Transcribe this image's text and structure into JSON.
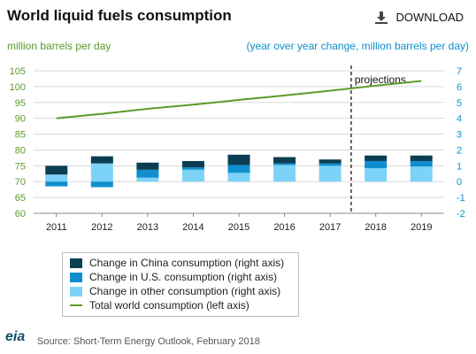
{
  "header": {
    "title": "World liquid fuels consumption",
    "download_label": "DOWNLOAD",
    "download_icon": "download-icon"
  },
  "colors": {
    "china": "#0b3e52",
    "us": "#0f8fcf",
    "other": "#7dd3f7",
    "total": "#5a9a2b",
    "left_axis": "#5a9a2b",
    "right_axis": "#0f8fcf",
    "projection_line": "#333333",
    "grid": "#d9d9d9"
  },
  "chart_data": {
    "type": "bar",
    "subtype": "stacked bar with line overlay",
    "title": "World liquid fuels consumption",
    "categories": [
      "2011",
      "2012",
      "2013",
      "2014",
      "2015",
      "2016",
      "2017",
      "2018",
      "2019"
    ],
    "left_axis": {
      "label": "million barrels per day",
      "range": [
        60,
        105
      ],
      "ticks": [
        60,
        65,
        70,
        75,
        80,
        85,
        90,
        95,
        100,
        105
      ]
    },
    "right_axis": {
      "label": "(year over year change, million barrels per day)",
      "range": [
        -2,
        7
      ],
      "ticks": [
        -2,
        -1,
        0,
        1,
        2,
        3,
        4,
        5,
        6,
        7
      ]
    },
    "series": [
      {
        "name": "Change in China consumption (right axis)",
        "axis": "right",
        "kind": "bar",
        "values": [
          0.55,
          0.45,
          0.45,
          0.4,
          0.65,
          0.4,
          0.25,
          0.35,
          0.35
        ]
      },
      {
        "name": "Change in U.S. consumption (right axis)",
        "axis": "right",
        "kind": "bar",
        "values": [
          -0.3,
          -0.35,
          0.5,
          0.15,
          0.5,
          0.1,
          0.15,
          0.45,
          0.35
        ]
      },
      {
        "name": "Change in other consumption (right axis)",
        "axis": "right",
        "kind": "bar",
        "values": [
          0.45,
          1.15,
          0.25,
          0.75,
          0.55,
          1.05,
          1.0,
          0.85,
          0.95
        ]
      },
      {
        "name": "Total world consumption (left axis)",
        "axis": "left",
        "kind": "line",
        "values": [
          90,
          91.4,
          93.0,
          94.3,
          95.8,
          97.2,
          98.7,
          100.3,
          101.8
        ]
      }
    ],
    "annotations": [
      {
        "text": "projections",
        "after_category": "2017"
      }
    ],
    "grid": "horizontal",
    "legend_position": "bottom-left"
  },
  "footer": {
    "logo": "eia",
    "source": "Source: Short-Term Energy Outlook, February 2018"
  }
}
